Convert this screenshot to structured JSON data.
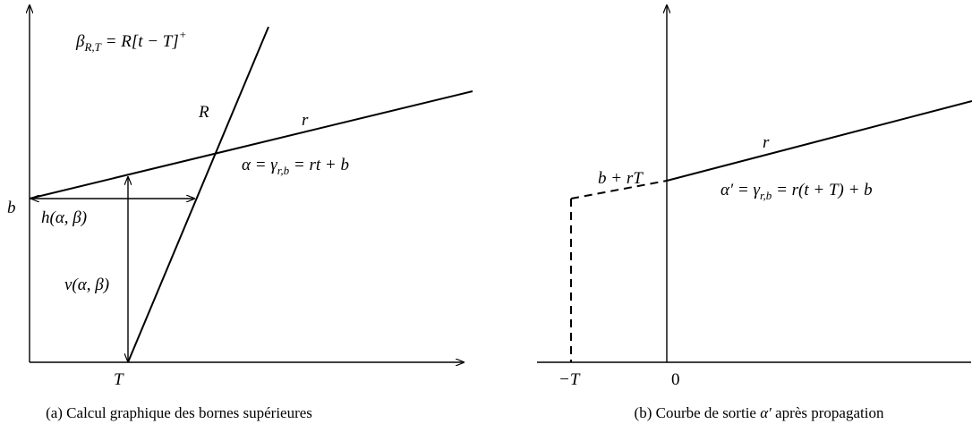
{
  "figure_a": {
    "beta_label": [
      "β",
      "R,T",
      " = R[t − T]",
      "+"
    ],
    "R_label": "R",
    "r_label": "r",
    "alpha_label": [
      "α = γ",
      "r,b",
      " = rt + b"
    ],
    "b_label": "b",
    "h_label": "h(α, β)",
    "v_label": "v(α, β)",
    "T_label": "T",
    "caption": "(a) Calcul graphique des bornes supérieures"
  },
  "figure_b": {
    "r_label": "r",
    "brT_label": "b + rT",
    "alpha_prime_label": [
      "α′ = γ",
      "r,b",
      " = r(t + T) + b"
    ],
    "minus_T_label": "−T",
    "zero_label": "0",
    "caption": [
      "(b) Courbe de sortie ",
      "α′",
      " après propagation"
    ]
  }
}
